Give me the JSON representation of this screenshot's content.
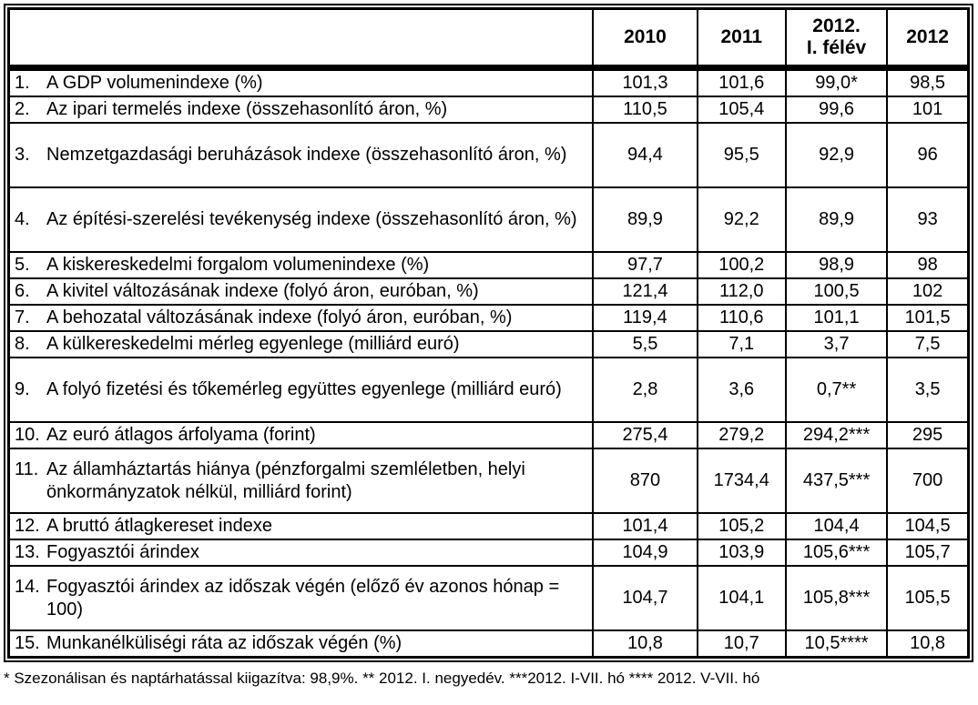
{
  "table": {
    "header": {
      "label_col": "",
      "cols": [
        "2010",
        "2011",
        "2012.\nI. félév",
        "2012"
      ]
    },
    "rows": [
      {
        "num": "1.",
        "label": "A GDP volumenindexe (%)",
        "values": [
          "101,3",
          "101,6",
          "99,0*",
          "98,5"
        ],
        "tall": false
      },
      {
        "num": "2.",
        "label": "Az ipari termelés indexe (összehasonlító áron, %)",
        "values": [
          "110,5",
          "105,4",
          "99,6",
          "101"
        ],
        "tall": false
      },
      {
        "num": "3.",
        "label": "Nemzetgazdasági beruházások indexe (összehasonlító áron, %)",
        "values": [
          "94,4",
          "95,5",
          "92,9",
          "96"
        ],
        "tall": true
      },
      {
        "num": "4.",
        "label": "Az építési-szerelési tevékenység indexe (összehasonlító áron, %)",
        "values": [
          "89,9",
          "92,2",
          "89,9",
          "93"
        ],
        "tall": true
      },
      {
        "num": "5.",
        "label": "A kiskereskedelmi forgalom volumenindexe (%)",
        "values": [
          "97,7",
          "100,2",
          "98,9",
          "98"
        ],
        "tall": false
      },
      {
        "num": "6.",
        "label": "A kivitel változásának indexe (folyó áron, euróban, %)",
        "values": [
          "121,4",
          "112,0",
          "100,5",
          "102"
        ],
        "tall": false
      },
      {
        "num": "7.",
        "label": "A behozatal változásának indexe (folyó áron, euróban, %)",
        "values": [
          "119,4",
          "110,6",
          "101,1",
          "101,5"
        ],
        "tall": false
      },
      {
        "num": "8.",
        "label": "A külkereskedelmi mérleg egyenlege (milliárd euró)",
        "values": [
          "5,5",
          "7,1",
          "3,7",
          "7,5"
        ],
        "tall": false
      },
      {
        "num": "9.",
        "label": "A folyó fizetési és tőkemérleg együttes egyenlege (milliárd euró)",
        "values": [
          "2,8",
          "3,6",
          "0,7**",
          "3,5"
        ],
        "tall": true
      },
      {
        "num": "10.",
        "label": "Az euró átlagos árfolyama (forint)",
        "values": [
          "275,4",
          "279,2",
          "294,2***",
          "295"
        ],
        "tall": false
      },
      {
        "num": "11.",
        "label": "Az államháztartás hiánya (pénzforgalmi szemléletben, helyi önkormányzatok nélkül, milliárd forint)",
        "values": [
          "870",
          "1734,4",
          "437,5***",
          "700"
        ],
        "tall": true
      },
      {
        "num": "12.",
        "label": "A bruttó átlagkereset indexe",
        "values": [
          "101,4",
          "105,2",
          "104,4",
          "104,5"
        ],
        "tall": false
      },
      {
        "num": "13.",
        "label": "Fogyasztói árindex",
        "values": [
          "104,9",
          "103,9",
          "105,6***",
          "105,7"
        ],
        "tall": false
      },
      {
        "num": "14.",
        "label": "Fogyasztói árindex az időszak végén (előző év azonos hónap = 100)",
        "values": [
          "104,7",
          "104,1",
          "105,8***",
          "105,5"
        ],
        "tall": true
      },
      {
        "num": "15.",
        "label": "Munkanélküliségi ráta az időszak végén (%)",
        "values": [
          "10,8",
          "10,7",
          "10,5****",
          "10,8"
        ],
        "tall": false
      }
    ]
  },
  "footnote": "* Szezonálisan és naptárhatással kiigazítva: 98,9%. ** 2012. I. negyedév. ***2012. I-VII. hó **** 2012. V-VII. hó"
}
